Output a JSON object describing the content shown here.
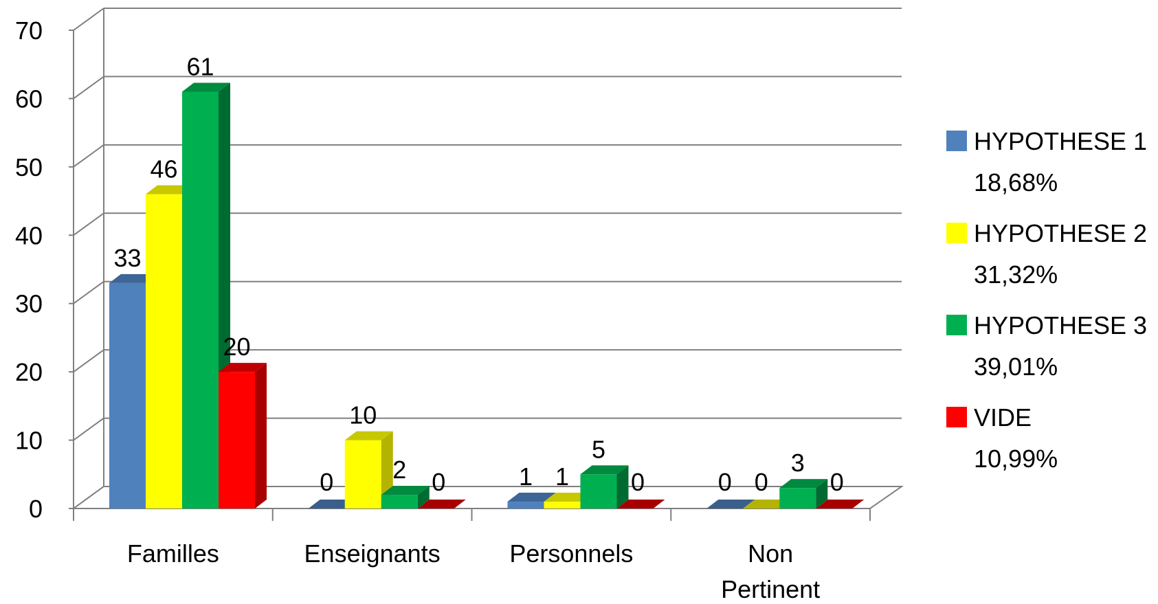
{
  "chart_data": {
    "type": "bar",
    "categories": [
      [
        "Familles"
      ],
      [
        "Enseignants"
      ],
      [
        "Personnels"
      ],
      [
        "Non",
        "Pertinent"
      ]
    ],
    "series": [
      {
        "name": [
          "HYPOTHESE 1",
          "18,68%"
        ],
        "values": [
          33,
          0,
          1,
          0
        ],
        "color": "#4f81bd",
        "dark": "#3b5f8c",
        "top": "#3d6595"
      },
      {
        "name": [
          "HYPOTHESE 2",
          "31,32%"
        ],
        "values": [
          46,
          10,
          1,
          0
        ],
        "color": "#ffff00",
        "dark": "#b3b300",
        "top": "#c8c800"
      },
      {
        "name": [
          "HYPOTHESE 3",
          "39,01%"
        ],
        "values": [
          61,
          2,
          5,
          3
        ],
        "color": "#00b050",
        "dark": "#006b30",
        "top": "#008a3f"
      },
      {
        "name": [
          "VIDE",
          "10,99%"
        ],
        "values": [
          20,
          0,
          0,
          0
        ],
        "color": "#ff0000",
        "dark": "#a80000",
        "top": "#c00000"
      }
    ],
    "y_ticks": [
      "0",
      "10",
      "20",
      "30",
      "40",
      "50",
      "60",
      "70"
    ],
    "ylim": [
      0,
      70
    ],
    "grid": true,
    "legend_position": "right",
    "style": "3d-clustered-column"
  }
}
